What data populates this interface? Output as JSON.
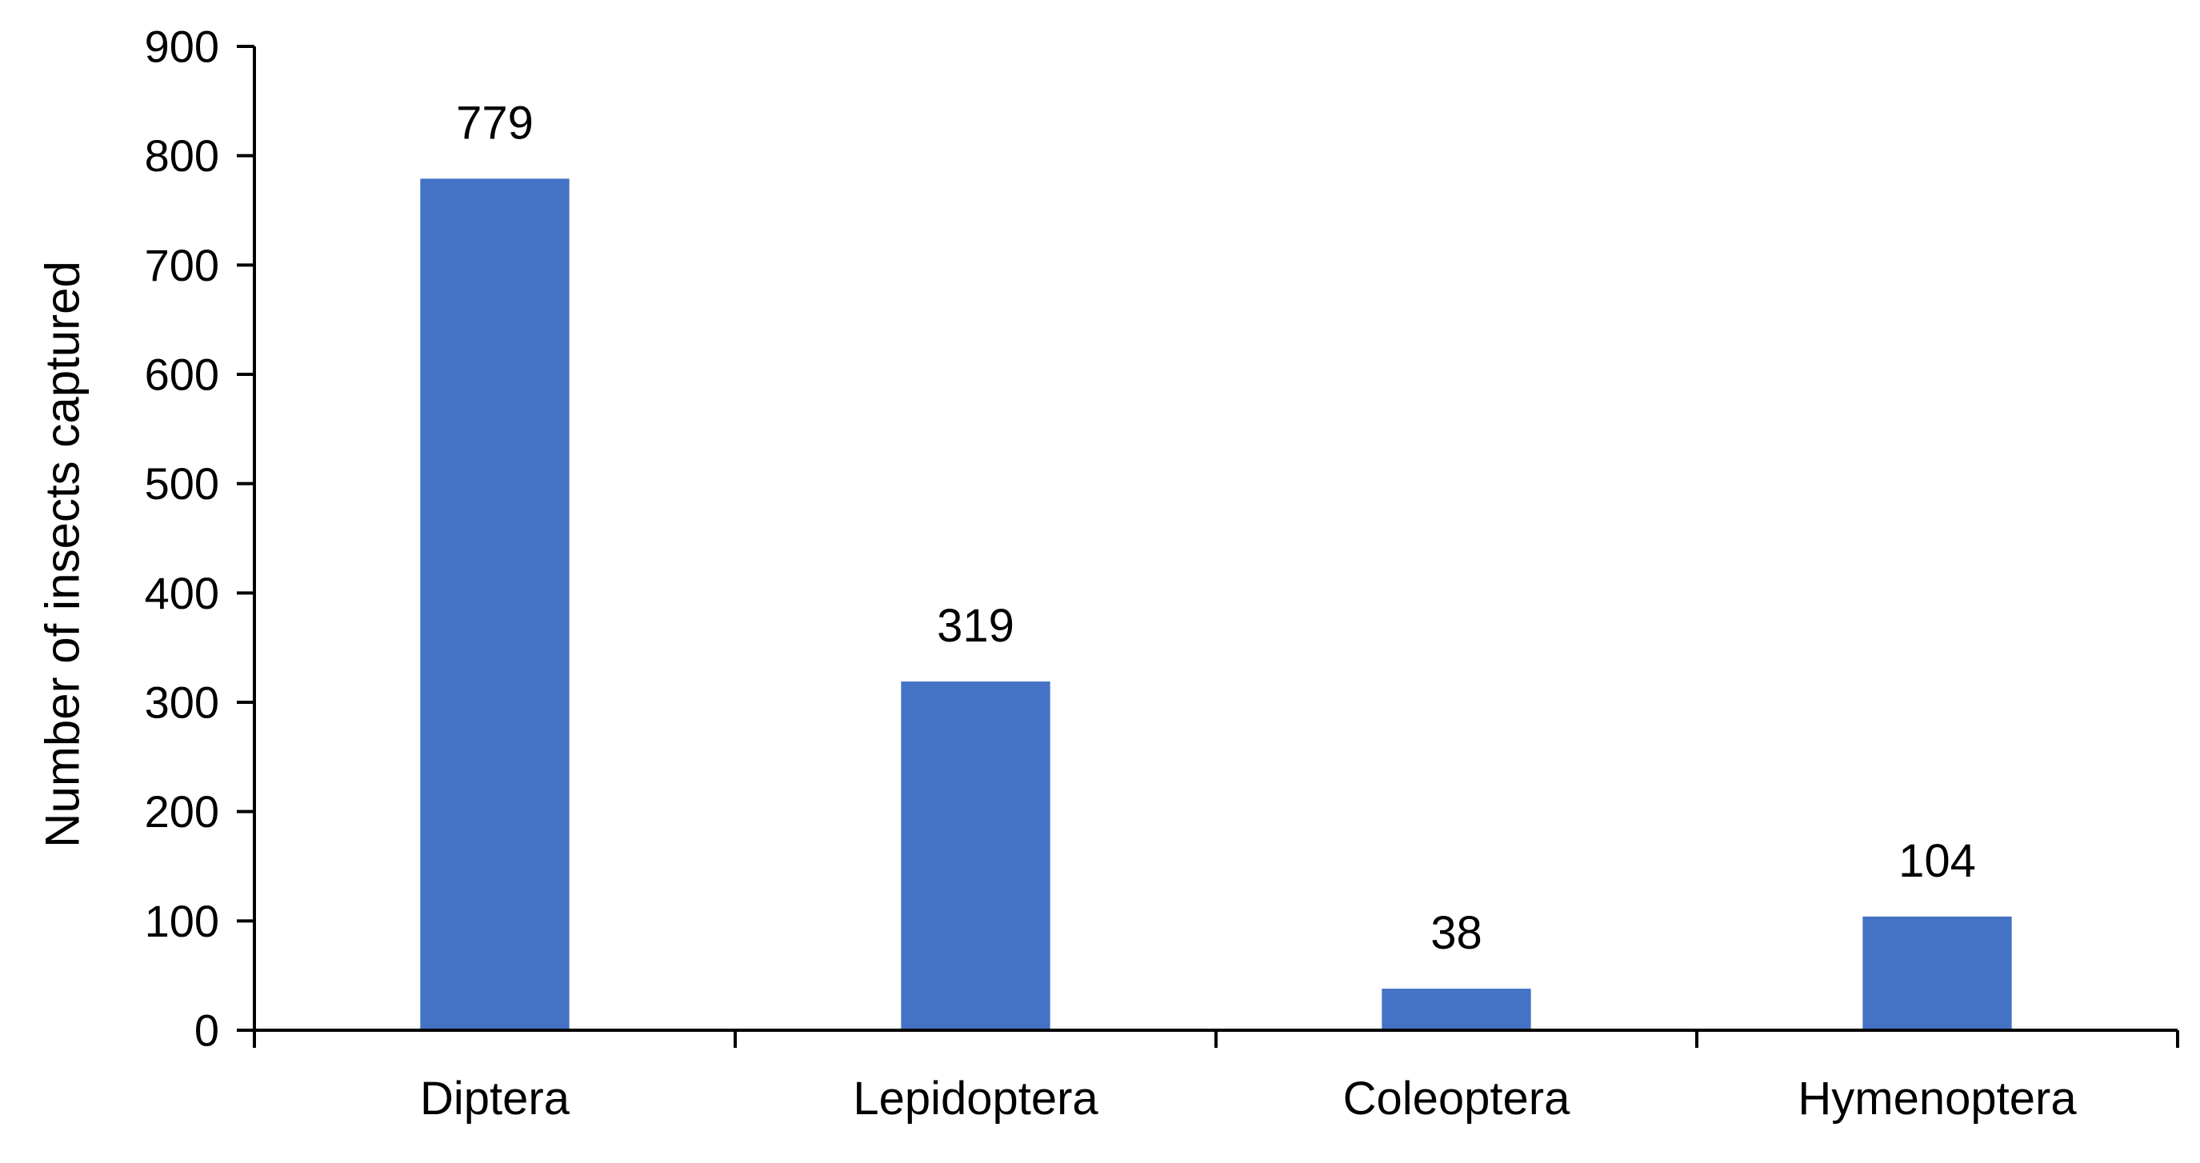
{
  "chart_data": {
    "type": "bar",
    "title": "",
    "xlabel": "",
    "ylabel": "Number of insects captured",
    "categories": [
      "Diptera",
      "Lepidoptera",
      "Coleoptera",
      "Hymenoptera"
    ],
    "values": [
      779,
      319,
      38,
      104
    ],
    "data_labels": [
      "779",
      "319",
      "38",
      "104"
    ],
    "ylim": [
      0,
      900
    ],
    "yticks": [
      0,
      100,
      200,
      300,
      400,
      500,
      600,
      700,
      800,
      900
    ],
    "grid": false,
    "legend": "none",
    "bar_color": "#4472C4"
  }
}
